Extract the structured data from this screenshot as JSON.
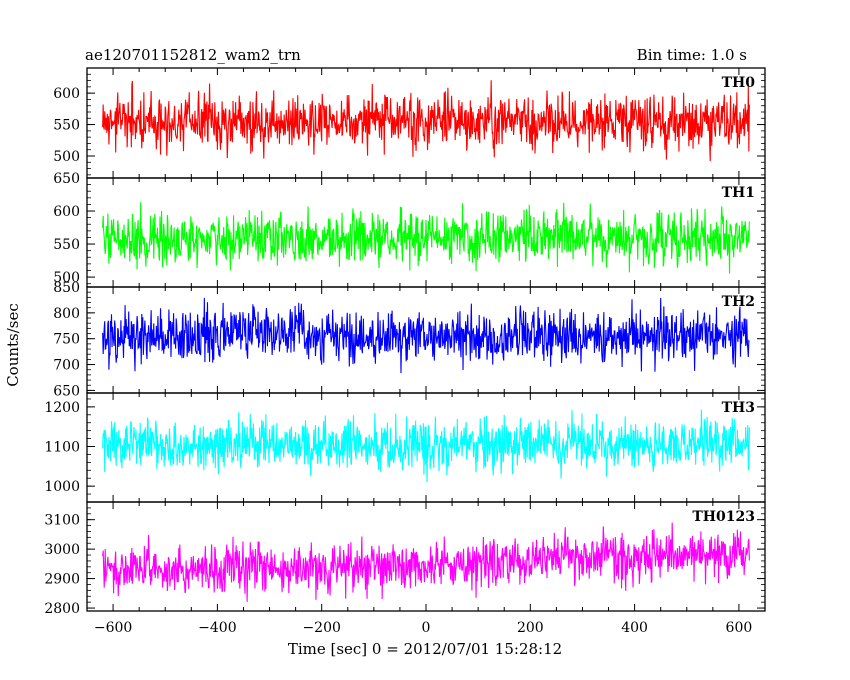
{
  "chart_data": {
    "type": "line",
    "title": "ae120701152812_wam2_trn",
    "subtitle": "Bin time: 1.0 s",
    "xlabel": "Time [sec] 0 = 2012/07/01 15:28:12",
    "ylabel": "Counts/sec",
    "xlim": [
      -650,
      650
    ],
    "x_range_data": [
      -620,
      620
    ],
    "bin_time": 1.0,
    "xticks": [
      -600,
      -400,
      -200,
      0,
      200,
      400,
      600
    ],
    "xtick_labels": [
      "−600",
      "−400",
      "−200",
      "0",
      "200",
      "400",
      "600"
    ],
    "panels": [
      {
        "name": "TH0",
        "color": "#ff0000",
        "ylim": [
          465,
          640
        ],
        "yticks": [
          500,
          550,
          600
        ],
        "ytick_labels": [
          "500",
          "550",
          "600"
        ],
        "mean": 555,
        "amp": 40,
        "drift": [
          0,
          0,
          0,
          0,
          0,
          0,
          0
        ]
      },
      {
        "name": "TH1",
        "color": "#00ff00",
        "ylim": [
          485,
          650
        ],
        "yticks": [
          500,
          550,
          600,
          650
        ],
        "ytick_labels": [
          "500",
          "550",
          "600",
          "650"
        ],
        "mean": 560,
        "amp": 35,
        "drift": [
          0,
          0,
          0,
          0,
          0,
          0,
          0
        ]
      },
      {
        "name": "TH2",
        "color": "#0000ff",
        "ylim": [
          645,
          850
        ],
        "yticks": [
          650,
          700,
          750,
          800,
          850
        ],
        "ytick_labels": [
          "650",
          "700",
          "750",
          "800",
          "850"
        ],
        "mean": 755,
        "amp": 48,
        "drift": [
          0,
          0,
          0,
          0,
          0,
          0,
          0
        ]
      },
      {
        "name": "TH3",
        "color": "#00ffff",
        "ylim": [
          960,
          1235
        ],
        "yticks": [
          1000,
          1100,
          1200
        ],
        "ytick_labels": [
          "1000",
          "1100",
          "1200"
        ],
        "mean": 1105,
        "amp": 58,
        "drift": [
          0,
          0,
          0,
          0,
          0,
          0,
          0
        ]
      },
      {
        "name": "TH0123",
        "color": "#ff00ff",
        "ylim": [
          2790,
          3160
        ],
        "yticks": [
          2800,
          2900,
          3000,
          3100
        ],
        "ytick_labels": [
          "2800",
          "2900",
          "3000",
          "3100"
        ],
        "mean": 2950,
        "amp": 75,
        "drift": [
          -10,
          -15,
          -15,
          -5,
          10,
          20,
          25
        ]
      }
    ]
  }
}
